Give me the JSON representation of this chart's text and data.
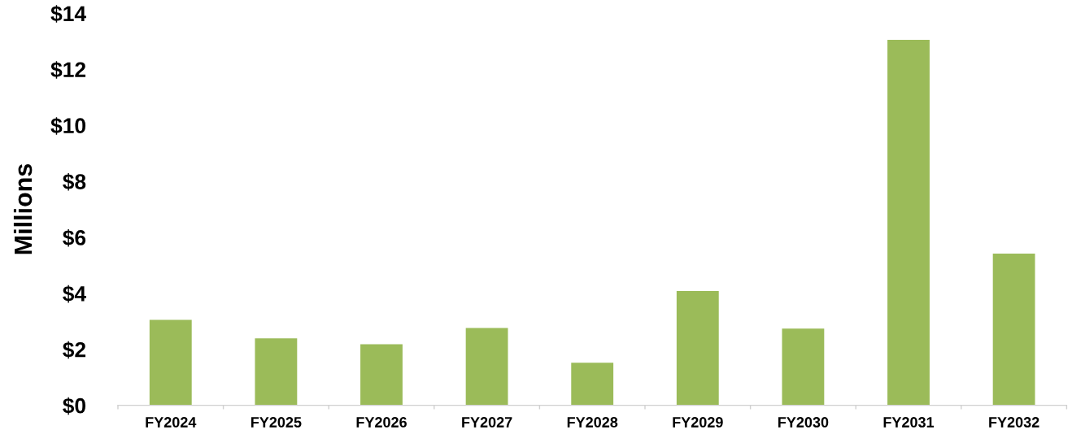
{
  "chart_data": {
    "type": "bar",
    "ylabel": "Millions",
    "categories": [
      "FY2024",
      "FY2025",
      "FY2026",
      "FY2027",
      "FY2028",
      "FY2029",
      "FY2030",
      "FY2031",
      "FY2032"
    ],
    "values": [
      3.05,
      2.39,
      2.18,
      2.76,
      1.52,
      4.08,
      2.74,
      13.05,
      5.42
    ],
    "color": "#9bbb59",
    "ylim": [
      0,
      14
    ],
    "yticks": [
      {
        "value": 0,
        "label": "$0"
      },
      {
        "value": 2,
        "label": "$2"
      },
      {
        "value": 4,
        "label": "$4"
      },
      {
        "value": 6,
        "label": "$6"
      },
      {
        "value": 8,
        "label": "$8"
      },
      {
        "value": 10,
        "label": "$10"
      },
      {
        "value": 12,
        "label": "$12"
      },
      {
        "value": 14,
        "label": "$14"
      }
    ],
    "grid": false
  }
}
